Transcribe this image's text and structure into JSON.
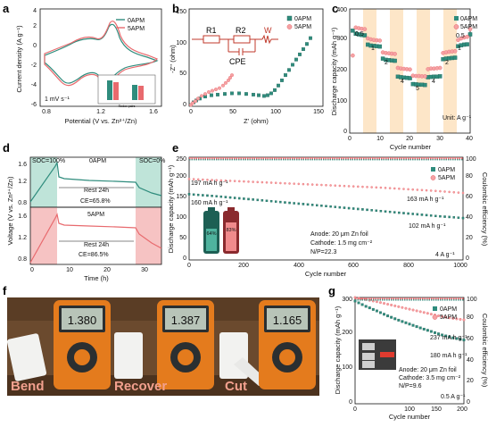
{
  "colors": {
    "teal": "#2f8c7d",
    "red": "#e86a6e",
    "red_light": "#f6c3c3",
    "teal_light": "#bfe4d9",
    "orange_band": "#fde6c8",
    "green_band": "#d7efe7",
    "pink_band": "#f9d7d7"
  },
  "panel_letters": [
    "a",
    "b",
    "c",
    "d",
    "e",
    "f",
    "g"
  ],
  "chart_data": [
    {
      "id": "a",
      "type": "line",
      "xlabel": "Potential (V vs. Zn²⁺/Zn)",
      "ylabel": "Current density (A g⁻¹)",
      "xlim": [
        0.8,
        1.6
      ],
      "ylim": [
        -6,
        4
      ],
      "xticks": [
        "0.8",
        "1.2",
        "1.6"
      ],
      "yticks": [
        "-6",
        "-4",
        "-2",
        "0",
        "2",
        "4"
      ],
      "annotation": "1 mV s⁻¹",
      "series": [
        {
          "name": "0APM",
          "color": "#2f8c7d"
        },
        {
          "name": "5APM",
          "color": "#e86a6e"
        }
      ],
      "inset": {
        "type": "bar",
        "xlabel": "Redox pairs",
        "ylabel": "Voltage (V)",
        "categories": [
          "O¹/R¹",
          "O²/R²"
        ]
      }
    },
    {
      "id": "b",
      "type": "scatter",
      "xlabel": "Z' (ohm)",
      "ylabel": "-Z'' (ohm)",
      "xlim": [
        0,
        150
      ],
      "ylim": [
        0,
        150
      ],
      "xticks": [
        "0",
        "50",
        "100",
        "150"
      ],
      "yticks": [
        "0",
        "50",
        "100",
        "150"
      ],
      "circuit": {
        "r1": "R1",
        "r2": "R2",
        "cpe": "CPE",
        "w": "W"
      },
      "series": [
        {
          "name": "0APM",
          "color": "#2f8c7d",
          "x": [
            2,
            5,
            8,
            12,
            18,
            25,
            32,
            40,
            48,
            56,
            64,
            72,
            78,
            84,
            88,
            92,
            96,
            100,
            104,
            108,
            112,
            116,
            120,
            124,
            128,
            132,
            136
          ],
          "y": [
            2,
            6,
            9,
            12,
            15,
            17,
            18,
            19,
            20,
            20,
            19,
            18,
            17,
            16,
            17,
            20,
            25,
            32,
            40,
            48,
            56,
            64,
            72,
            80,
            88,
            96,
            105
          ]
        },
        {
          "name": "5APM",
          "color": "#e86a6e",
          "x": [
            2,
            4,
            7,
            10,
            14,
            18,
            22,
            26,
            30,
            34,
            38,
            41,
            44,
            46,
            48
          ],
          "y": [
            2,
            5,
            8,
            12,
            16,
            19,
            22,
            24,
            26,
            28,
            32,
            36,
            40,
            44,
            48
          ]
        }
      ]
    },
    {
      "id": "c",
      "type": "scatter",
      "xlabel": "Cycle number",
      "ylabel": "Discharge capacity (mAh g⁻¹)",
      "xlim": [
        0,
        40
      ],
      "ylim": [
        0,
        400
      ],
      "xticks": [
        "0",
        "10",
        "20",
        "30",
        "40"
      ],
      "yticks": [
        "0",
        "100",
        "200",
        "300",
        "400"
      ],
      "annotation": "Unit: A g⁻¹",
      "rate_labels": [
        "0.5",
        "1",
        "2",
        "4",
        "5",
        "4",
        "2",
        "1",
        "0.5"
      ],
      "series": [
        {
          "name": "0APM",
          "color": "#2f8c7d",
          "x": [
            1,
            2,
            3,
            4,
            5,
            6,
            7,
            8,
            9,
            10,
            11,
            12,
            13,
            14,
            15,
            16,
            17,
            18,
            19,
            20,
            21,
            22,
            23,
            24,
            25,
            26,
            27,
            28,
            29,
            30,
            31,
            32,
            33,
            34,
            35,
            36,
            37,
            38,
            39,
            40
          ],
          "y": [
            330,
            320,
            318,
            316,
            315,
            285,
            282,
            281,
            280,
            279,
            240,
            236,
            235,
            234,
            233,
            182,
            180,
            179,
            178,
            177,
            158,
            157,
            156,
            156,
            155,
            180,
            181,
            182,
            182,
            183,
            238,
            240,
            241,
            242,
            243,
            280,
            283,
            285,
            286,
            318
          ]
        },
        {
          "name": "5APM",
          "color": "#e86a6e",
          "x": [
            1,
            2,
            3,
            4,
            5,
            6,
            7,
            8,
            9,
            10,
            11,
            12,
            13,
            14,
            15,
            16,
            17,
            18,
            19,
            20,
            21,
            22,
            23,
            24,
            25,
            26,
            27,
            28,
            29,
            30,
            31,
            32,
            33,
            34,
            35,
            36,
            37,
            38,
            39,
            40
          ],
          "y": [
            250,
            340,
            338,
            336,
            335,
            305,
            302,
            300,
            299,
            298,
            260,
            258,
            257,
            256,
            255,
            210,
            208,
            207,
            206,
            205,
            185,
            184,
            184,
            183,
            183,
            206,
            208,
            208,
            209,
            210,
            258,
            260,
            262,
            263,
            264,
            300,
            305,
            308,
            310,
            335
          ]
        }
      ]
    },
    {
      "id": "d",
      "type": "line",
      "xlabel": "Time (h)",
      "ylabel": "Voltage (V vs. Zn²⁺/Zn)",
      "xlim": [
        0,
        35
      ],
      "xticks": [
        "0",
        "10",
        "20",
        "30"
      ],
      "yticks_top": [
        "0.8",
        "1.2",
        "1.6"
      ],
      "yticks_bottom": [
        "0.8",
        "1.2",
        "1.6"
      ],
      "top": {
        "name": "0APM",
        "soc_full": "SOC=100%",
        "soc_empty": "SOC=0%",
        "rest": "Rest 24h",
        "ce": "CE=65.8%"
      },
      "bottom": {
        "name": "5APM",
        "rest": "Rest 24h",
        "ce": "CE=86.5%"
      }
    },
    {
      "id": "e",
      "type": "scatter",
      "xlabel": "Cycle number",
      "ylabel": "Discharge capacity (mAh g⁻¹)",
      "ylabel_right": "Coulombic efficiency (%)",
      "xlim": [
        0,
        1000
      ],
      "ylim": [
        0,
        250
      ],
      "xticks": [
        "0",
        "200",
        "400",
        "600",
        "800",
        "1000"
      ],
      "yticks": [
        "0",
        "50",
        "100",
        "150",
        "200",
        "250"
      ],
      "yticks_right": [
        "0",
        "20",
        "40",
        "60",
        "80",
        "100"
      ],
      "labels": {
        "a": "197 mA h g⁻¹",
        "b": "163 mA h g⁻¹",
        "c": "160 mA h g⁻¹",
        "d": "102 mA h g⁻¹"
      },
      "battery": {
        "left": "64%",
        "right": "83%"
      },
      "conditions": [
        "Anode: 20 μm Zn foil",
        "Cathode: 1.5 mg cm⁻²",
        "N/P=22.3"
      ],
      "current": "4 A g⁻¹",
      "series": [
        {
          "name": "0APM",
          "color": "#2f8c7d",
          "x": [
            0,
            100,
            200,
            300,
            400,
            500,
            600,
            700,
            800,
            900,
            1000
          ],
          "y": [
            160,
            155,
            149,
            143,
            137,
            131,
            125,
            119,
            113,
            107,
            102
          ]
        },
        {
          "name": "5APM",
          "color": "#e86a6e",
          "x": [
            0,
            100,
            200,
            300,
            400,
            500,
            600,
            700,
            800,
            900,
            1000
          ],
          "y": [
            197,
            194,
            191,
            188,
            185,
            182,
            179,
            176,
            172,
            168,
            163
          ]
        },
        {
          "name": "0APM CE",
          "color": "#2f8c7d",
          "x": [
            0,
            1000
          ],
          "y": [
            98,
            98
          ]
        },
        {
          "name": "5APM CE",
          "color": "#e86a6e",
          "x": [
            0,
            1000
          ],
          "y": [
            99,
            99
          ]
        }
      ]
    },
    {
      "id": "f",
      "type": "photo",
      "captions": [
        "Bend",
        "Recover",
        "Cut"
      ],
      "readings": [
        "1.380",
        "1.387",
        "1.165"
      ]
    },
    {
      "id": "g",
      "type": "scatter",
      "xlabel": "Cycle number",
      "ylabel": "Discharge capacity (mAh g⁻¹)",
      "ylabel_right": "Coulombic efficiency (%)",
      "xlim": [
        0,
        200
      ],
      "ylim": [
        0,
        300
      ],
      "xticks": [
        "0",
        "100",
        "150",
        "200"
      ],
      "yticks": [
        "0",
        "100",
        "200",
        "300"
      ],
      "yticks_right": [
        "0",
        "20",
        "40",
        "60",
        "80",
        "100"
      ],
      "labels": {
        "a": "237 mA h g⁻¹",
        "b": "180 mA h g⁻¹"
      },
      "conditions": [
        "Anode: 20 μm Zn foil",
        "Cathode: 3.5 mg cm⁻²",
        "N/P=9.6"
      ],
      "current": "0.5 A g⁻¹",
      "series": [
        {
          "name": "0APM",
          "color": "#2f8c7d",
          "x": [
            0,
            20,
            40,
            60,
            80,
            100,
            120,
            140,
            160,
            180,
            200
          ],
          "y": [
            290,
            275,
            262,
            248,
            236,
            225,
            214,
            204,
            194,
            186,
            180
          ]
        },
        {
          "name": "5APM",
          "color": "#e86a6e",
          "x": [
            0,
            20,
            40,
            60,
            80,
            100,
            120,
            140,
            160,
            180,
            200
          ],
          "y": [
            300,
            294,
            288,
            281,
            274,
            267,
            260,
            253,
            246,
            241,
            237
          ]
        },
        {
          "name": "0APM CE",
          "color": "#2f8c7d",
          "x": [
            0,
            200
          ],
          "y": [
            98,
            98
          ]
        },
        {
          "name": "5APM CE",
          "color": "#e86a6e",
          "x": [
            0,
            200
          ],
          "y": [
            99,
            99
          ]
        }
      ]
    }
  ]
}
